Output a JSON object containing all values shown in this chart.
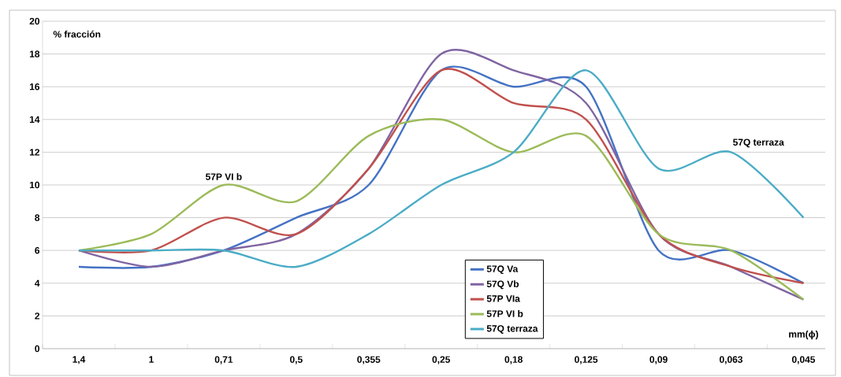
{
  "chart_data": {
    "type": "line",
    "xlabel": "mm(ϕ)",
    "ylabel": "% fracción",
    "categories": [
      "1,4",
      "1",
      "0,71",
      "0,5",
      "0,355",
      "0,25",
      "0,18",
      "0,125",
      "0,09",
      "0,063",
      "0,045"
    ],
    "series": [
      {
        "name": "57Q Va",
        "color": "#4472c4",
        "values": [
          5,
          5,
          6,
          8,
          10,
          17,
          16,
          16,
          6,
          6,
          4
        ]
      },
      {
        "name": "57Q Vb",
        "color": "#8064a2",
        "values": [
          6,
          5,
          6,
          7,
          11,
          18,
          17,
          15,
          7,
          5,
          3
        ]
      },
      {
        "name": "57P VIa",
        "color": "#c0504d",
        "values": [
          6,
          6,
          8,
          7,
          11,
          17,
          15,
          14,
          7,
          5,
          4
        ]
      },
      {
        "name": "57P VI b",
        "color": "#9bbb59",
        "values": [
          6,
          7,
          10,
          9,
          13,
          14,
          12,
          13,
          7,
          6,
          3
        ]
      },
      {
        "name": "57Q terraza",
        "color": "#4bacc6",
        "values": [
          6,
          6,
          6,
          5,
          7,
          10,
          12,
          17,
          11,
          12,
          8
        ]
      }
    ],
    "ylim": [
      0,
      20
    ],
    "yticks": [
      0,
      2,
      4,
      6,
      8,
      10,
      12,
      14,
      16,
      18,
      20
    ],
    "grid": "y",
    "legend": "bottom",
    "annotations": [
      {
        "text": "57P VI b",
        "x": "0,71",
        "y": 10
      },
      {
        "text": "57Q terraza",
        "x": "0,063",
        "y": 12
      }
    ]
  }
}
